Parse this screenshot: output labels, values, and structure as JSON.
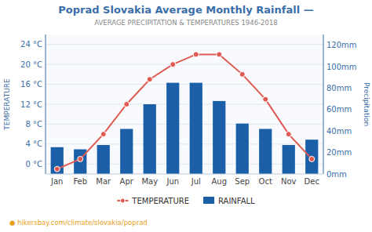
{
  "chart_data": {
    "type": "bar",
    "title": "Poprad Slovakia Average Monthly Rainfall —",
    "subtitle": "AVERAGE PRECIPITATION & TEMPERATURES 1946-2018",
    "annotations": [
      "● hikersbay.com/climate/slovakia/poprad"
    ],
    "categories": [
      "Jan",
      "Feb",
      "Mar",
      "Apr",
      "May",
      "Jun",
      "Jul",
      "Aug",
      "Sep",
      "Oct",
      "Nov",
      "Dec"
    ],
    "series": [
      {
        "name": "TEMPERATURE",
        "type": "line",
        "marker": "circle",
        "color": "#e05a52",
        "values": [
          -1,
          1,
          6,
          12,
          17,
          20,
          22,
          22,
          18,
          13,
          6,
          1
        ]
      },
      {
        "name": "RAINFALL",
        "type": "bar",
        "axis": "y2",
        "color": "#1a5fa8",
        "values": [
          25,
          23,
          27,
          42,
          65,
          85,
          85,
          68,
          47,
          42,
          27,
          32
        ]
      }
    ],
    "ylabel": "TEMPERATURE",
    "y2label": "Precipitation",
    "ylim": [
      -2,
      26
    ],
    "yticks": [
      {
        "value": 0,
        "label": "0 °C"
      },
      {
        "value": 4,
        "label": "4 °C"
      },
      {
        "value": 8,
        "label": "8 °C"
      },
      {
        "value": 12,
        "label": "12 °C"
      },
      {
        "value": 16,
        "label": "16 °C"
      },
      {
        "value": 20,
        "label": "20 °C"
      },
      {
        "value": 24,
        "label": "24 °C"
      }
    ],
    "y2lim": [
      0,
      130
    ],
    "y2ticks": [
      {
        "value": 0,
        "label": "0mm"
      },
      {
        "value": 20,
        "label": "20mm"
      },
      {
        "value": 40,
        "label": "40mm"
      },
      {
        "value": 60,
        "label": "60mm"
      },
      {
        "value": 80,
        "label": "80mm"
      },
      {
        "value": 100,
        "label": "100mm"
      },
      {
        "value": 120,
        "label": "120mm"
      }
    ],
    "grid": true,
    "legend": "bottom"
  }
}
